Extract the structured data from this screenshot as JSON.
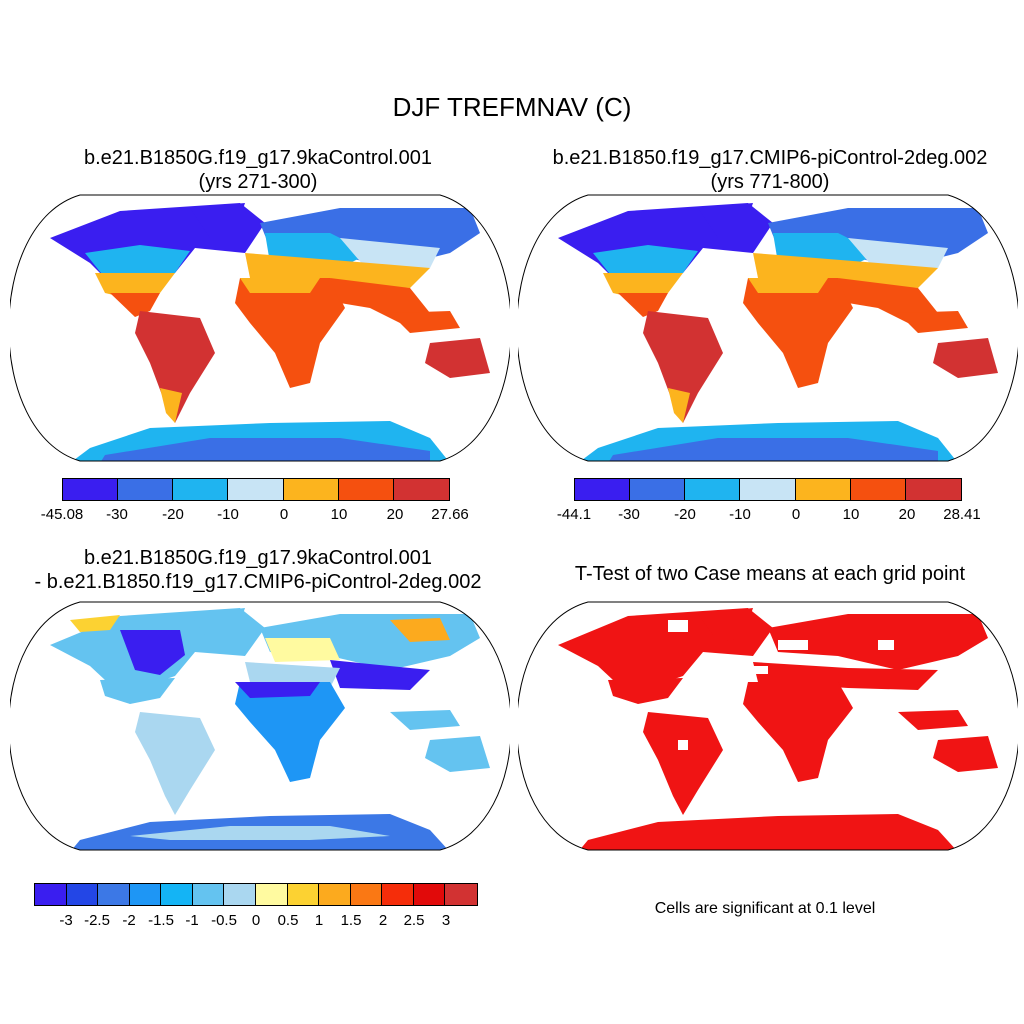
{
  "title": "DJF TREFMNAV (C)",
  "panels": [
    {
      "title_line1": "b.e21.B1850G.f19_g17.9kaControl.001",
      "title_line2": "(yrs 271-300)",
      "colorbar": {
        "colors": [
          "#3a1ef0",
          "#3a6fe6",
          "#1fb4f0",
          "#c8e4f5",
          "#fcb41e",
          "#f5500f",
          "#d23232"
        ],
        "labels": [
          "-45.08",
          "-30",
          "-20",
          "-10",
          "0",
          "10",
          "20",
          "27.66"
        ]
      }
    },
    {
      "title_line1": "b.e21.B1850.f19_g17.CMIP6-piControl-2deg.002",
      "title_line2": "(yrs 771-800)",
      "colorbar": {
        "colors": [
          "#3a1ef0",
          "#3a6fe6",
          "#1fb4f0",
          "#c8e4f5",
          "#fcb41e",
          "#f5500f",
          "#d23232"
        ],
        "labels": [
          "-44.1",
          "-30",
          "-20",
          "-10",
          "0",
          "10",
          "20",
          "28.41"
        ]
      }
    },
    {
      "title_line1": "b.e21.B1850G.f19_g17.9kaControl.001",
      "title_line2": "- b.e21.B1850.f19_g17.CMIP6-piControl-2deg.002",
      "colorbar": {
        "colors": [
          "#3a1ef0",
          "#2346e6",
          "#3c78e6",
          "#1e96f5",
          "#14b4f5",
          "#64c3f0",
          "#aad7f0",
          "#fffaa0",
          "#fcd232",
          "#fcaa1e",
          "#fa7814",
          "#f52d0a",
          "#e10a0a",
          "#d23232"
        ],
        "labels": [
          "-3",
          "-2.5",
          "-2",
          "-1.5",
          "-1",
          "-0.5",
          "0",
          "0.5",
          "1",
          "1.5",
          "2",
          "2.5",
          "3"
        ]
      }
    },
    {
      "title_line1": "T-Test of two Case means at each grid point",
      "note": "Cells are significant at 0.1 level"
    }
  ]
}
